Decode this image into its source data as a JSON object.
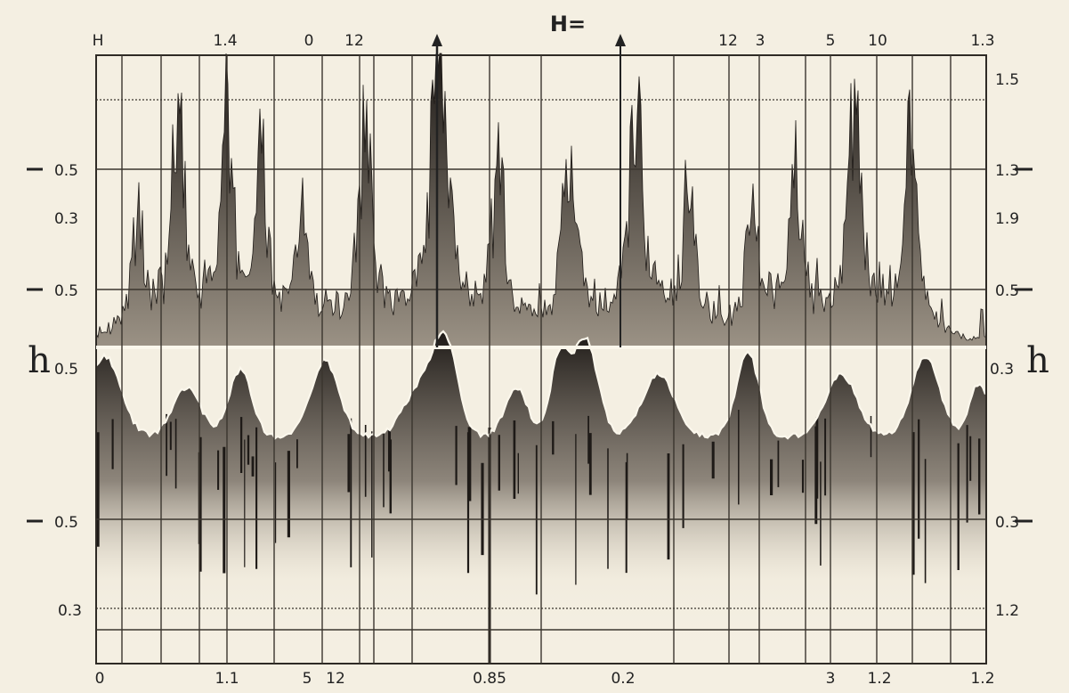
{
  "title": "H=",
  "axis_symbol": {
    "left": "h",
    "right": "h"
  },
  "top_labels": [
    "H",
    "1.4",
    "0",
    "12",
    "12",
    "3",
    "5",
    "10",
    "1.3"
  ],
  "bottom_labels": [
    "0",
    "1.1",
    "5",
    "12",
    "0.85",
    "0.2",
    "3",
    "1.2",
    "1.2"
  ],
  "left_labels": [
    "0.5",
    "0.3",
    "0.5",
    "0.5",
    "0.5",
    "0.3"
  ],
  "right_labels": [
    "1.5",
    "1.3",
    "1.9",
    "0.5",
    "0.3",
    "0.3",
    "1.2"
  ]
}
